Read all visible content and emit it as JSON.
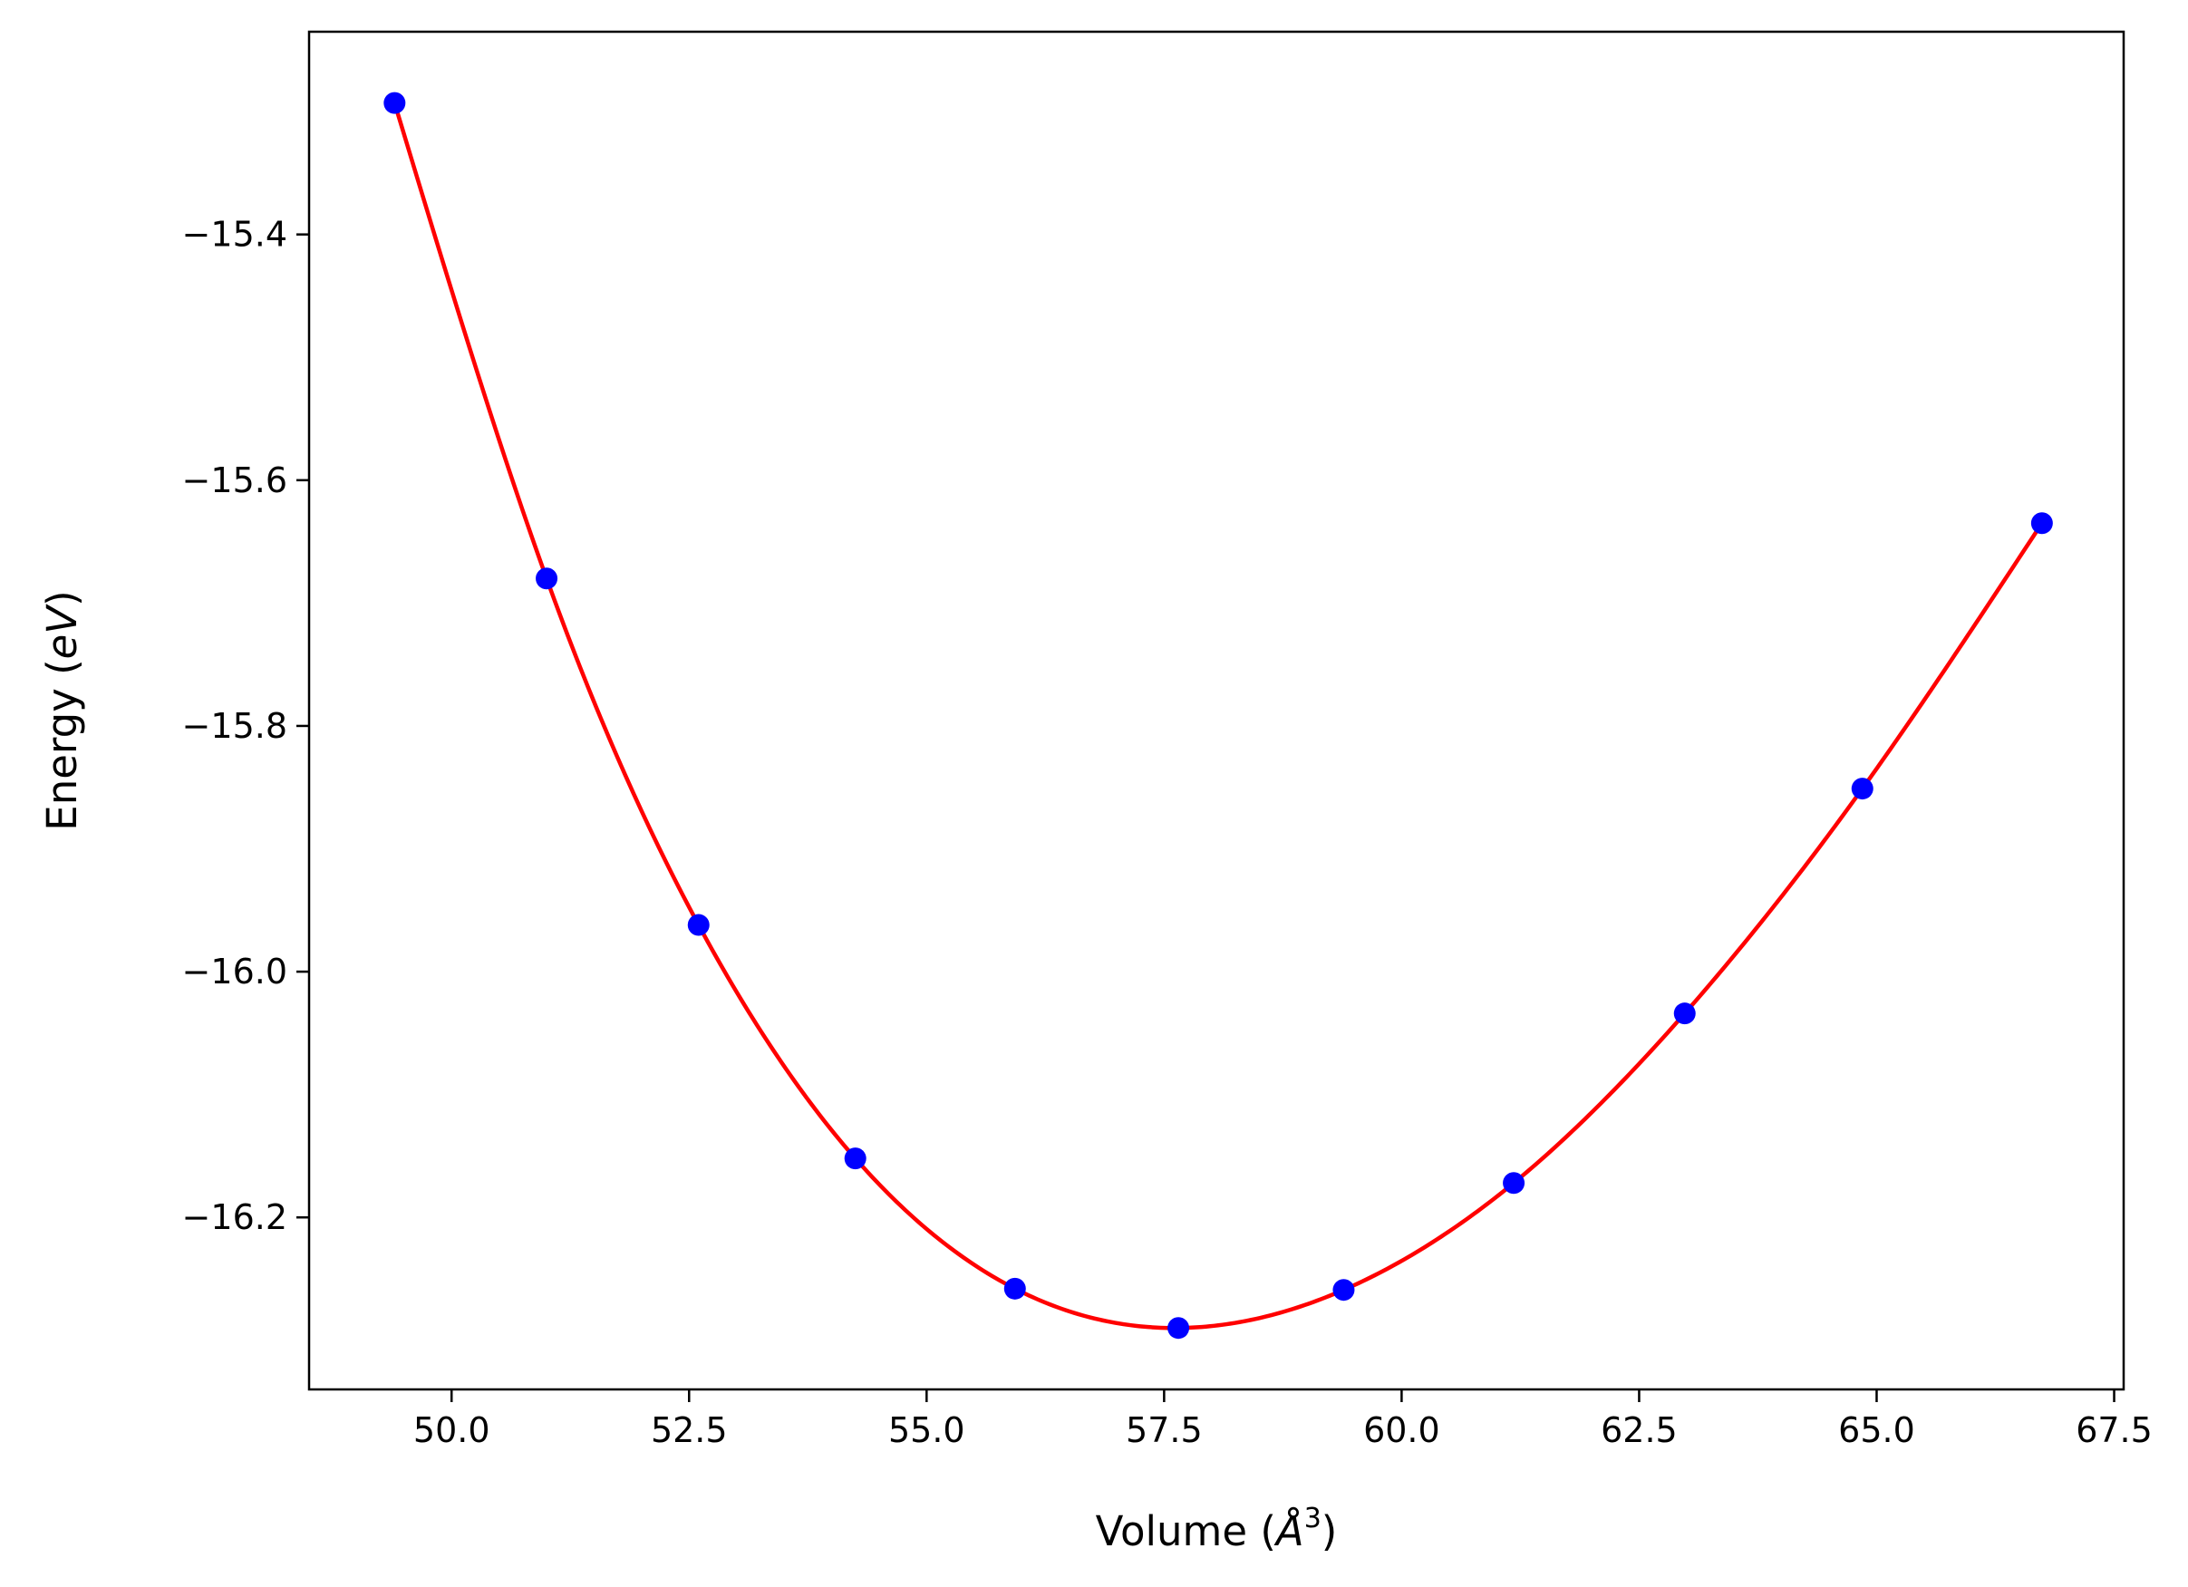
{
  "chart_data": {
    "type": "scatter",
    "xlabel": "Volume (",
    "xlabel_unit": "Å",
    "xlabel_power": "3",
    "xlabel_close": ")",
    "ylabel": "Energy (",
    "ylabel_unit": "eV",
    "ylabel_close": ")",
    "xlim": [
      48.5,
      67.6
    ],
    "ylim": [
      -16.34,
      -15.235
    ],
    "grid": false,
    "x_ticks": [
      50.0,
      52.5,
      55.0,
      57.5,
      60.0,
      62.5,
      65.0,
      67.5
    ],
    "x_tick_labels": [
      "50.0",
      "52.5",
      "55.0",
      "57.5",
      "60.0",
      "62.5",
      "65.0",
      "67.5"
    ],
    "y_ticks": [
      -15.4,
      -15.6,
      -15.8,
      -16.0,
      -16.2
    ],
    "y_tick_labels": [
      "−15.4",
      "−15.6",
      "−15.8",
      "−16.0",
      "−16.2"
    ],
    "series": [
      {
        "kind": "points",
        "color": "#0000ff",
        "x": [
          49.4,
          51.0,
          52.6,
          54.25,
          55.93,
          57.65,
          59.39,
          61.18,
          62.98,
          64.85,
          66.74
        ],
        "y": [
          -15.293,
          -15.68,
          -15.962,
          -16.152,
          -16.258,
          -16.29,
          -16.259,
          -16.172,
          -16.034,
          -15.851,
          -15.635
        ]
      },
      {
        "kind": "fit-line",
        "color": "#ff0000"
      }
    ]
  }
}
